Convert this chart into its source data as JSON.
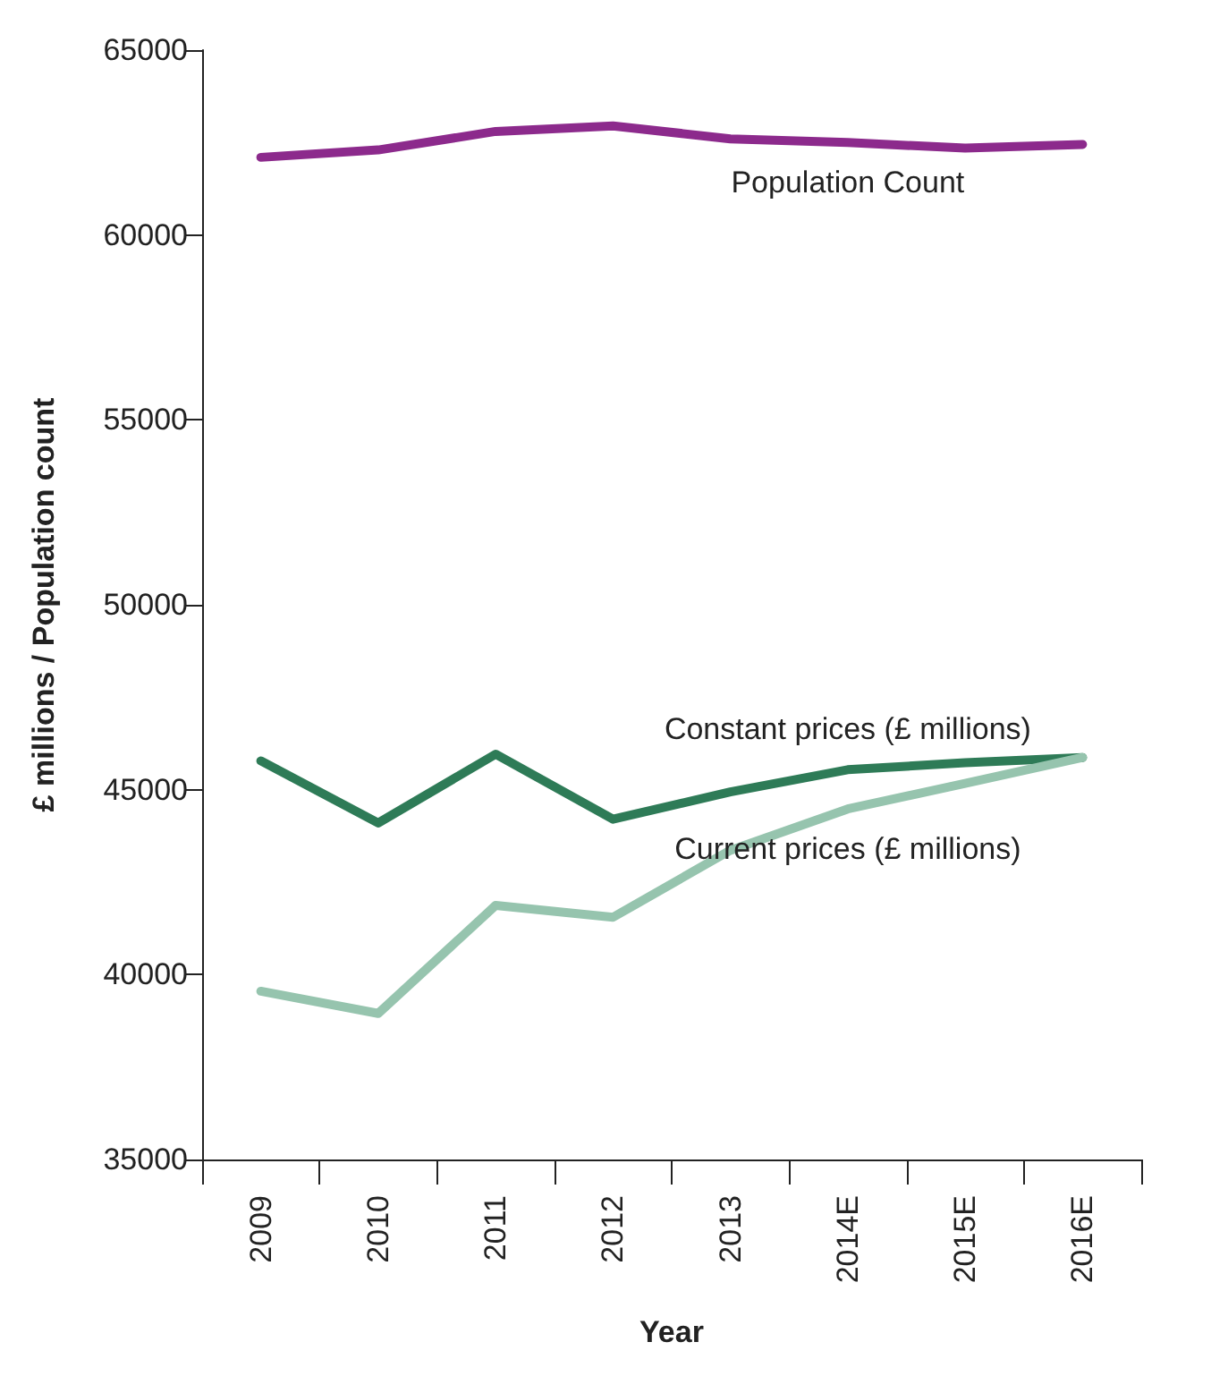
{
  "chart_data": {
    "type": "line",
    "xlabel": "Year",
    "ylabel": "£ millions / Population count",
    "categories": [
      "2009",
      "2010",
      "2011",
      "2012",
      "2013",
      "2014E",
      "2015E",
      "2016E"
    ],
    "series": [
      {
        "name": "Population Count",
        "color": "#8c2a8c",
        "values": [
          62100,
          62300,
          62800,
          62950,
          62600,
          62500,
          62350,
          62450
        ]
      },
      {
        "name": "Constant prices (£ millions)",
        "color": "#2e7b57",
        "values": [
          45780,
          44100,
          45960,
          44200,
          44940,
          45540,
          45730,
          45870
        ]
      },
      {
        "name": "Current prices (£ millions)",
        "color": "#96c4ae",
        "values": [
          39550,
          38950,
          41870,
          41550,
          43360,
          44480,
          45170,
          45870
        ]
      }
    ],
    "ylim": [
      35000,
      65000
    ],
    "yticks": [
      35000,
      40000,
      45000,
      50000,
      55000,
      60000,
      65000
    ],
    "grid": false,
    "legend": false,
    "marker": "none",
    "line_style": "solid"
  }
}
